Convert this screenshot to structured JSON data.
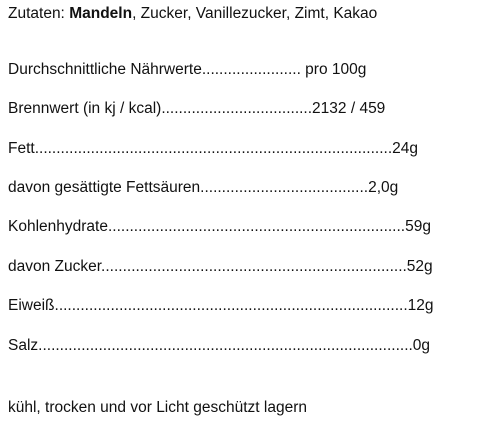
{
  "ingredients": {
    "prefix": "Zutaten: ",
    "highlight": "Mandeln",
    "rest": ", Zucker, Vanillezucker, Zimt, Kakao"
  },
  "nutrition": {
    "rows": [
      {
        "text": "Durchschnittliche Nährwerte....................... pro 100g"
      },
      {
        "text": "Brennwert (in kj / kcal)...................................2132 / 459"
      },
      {
        "text": "Fett...................................................................................24g"
      },
      {
        "text": "davon gesättigte Fettsäuren.......................................2,0g"
      },
      {
        "text": "Kohlenhydrate.....................................................................59g"
      },
      {
        "text": "davon Zucker.......................................................................52g"
      },
      {
        "text": "Eiweiß..................................................................................12g"
      },
      {
        "text": "Salz.......................................................................................0g"
      }
    ]
  },
  "storage": "kühl, trocken und vor Licht geschützt lagern"
}
